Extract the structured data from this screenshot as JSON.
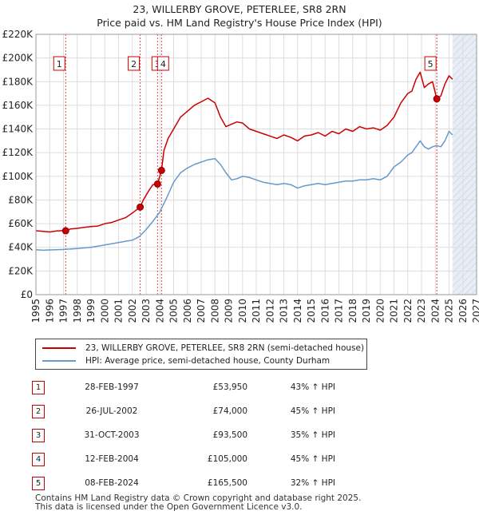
{
  "title": "23, WILLERBY GROVE, PETERLEE, SR8 2RN",
  "subtitle": "Price paid vs. HM Land Registry's House Price Index (HPI)",
  "colors": {
    "property": "#cc0000",
    "hpi": "#6699cc",
    "grid": "#dddddd",
    "marker_line": "#dd4444",
    "future_shade": "#e8eef6"
  },
  "chart_data": {
    "type": "line",
    "title": "23, WILLERBY GROVE, PETERLEE, SR8 2RN",
    "xlabel": "",
    "ylabel": "",
    "xlim": [
      1995,
      2027
    ],
    "ylim": [
      0,
      220000
    ],
    "grid": true,
    "y_ticks": [
      0,
      20000,
      40000,
      60000,
      80000,
      100000,
      120000,
      140000,
      160000,
      180000,
      200000,
      220000
    ],
    "y_tick_labels": [
      "£0",
      "£20K",
      "£40K",
      "£60K",
      "£80K",
      "£100K",
      "£120K",
      "£140K",
      "£160K",
      "£180K",
      "£200K",
      "£220K"
    ],
    "x_ticks": [
      "1995",
      "1996",
      "1997",
      "1998",
      "1999",
      "2000",
      "2001",
      "2002",
      "2003",
      "2004",
      "2005",
      "2006",
      "2007",
      "2008",
      "2009",
      "2010",
      "2011",
      "2012",
      "2013",
      "2014",
      "2015",
      "2016",
      "2017",
      "2018",
      "2019",
      "2020",
      "2021",
      "2022",
      "2023",
      "2024",
      "2025",
      "2026",
      "2027"
    ],
    "forecast_start": 2025.25,
    "series": [
      {
        "name": "23, WILLERBY GROVE, PETERLEE, SR8 2RN (semi-detached house)",
        "color": "#cc0000",
        "x": [
          1995.0,
          1995.5,
          1996.0,
          1996.5,
          1997.0,
          1997.16,
          1997.5,
          1998.0,
          1998.5,
          1999.0,
          1999.5,
          2000.0,
          2000.5,
          2001.0,
          2001.5,
          2002.0,
          2002.57,
          2002.8,
          2003.2,
          2003.5,
          2003.83,
          2004.12,
          2004.3,
          2004.6,
          2005.0,
          2005.5,
          2006.0,
          2006.5,
          2007.0,
          2007.5,
          2008.0,
          2008.4,
          2008.8,
          2009.2,
          2009.6,
          2010.0,
          2010.5,
          2011.0,
          2011.5,
          2012.0,
          2012.5,
          2013.0,
          2013.5,
          2014.0,
          2014.5,
          2015.0,
          2015.5,
          2016.0,
          2016.5,
          2017.0,
          2017.5,
          2018.0,
          2018.5,
          2019.0,
          2019.5,
          2020.0,
          2020.5,
          2021.0,
          2021.5,
          2022.0,
          2022.3,
          2022.6,
          2022.9,
          2023.2,
          2023.5,
          2023.8,
          2024.11,
          2024.4,
          2024.7,
          2025.0,
          2025.25
        ],
        "values": [
          54000,
          53500,
          53000,
          53800,
          54200,
          53950,
          55500,
          56000,
          56800,
          57500,
          58000,
          60000,
          61000,
          63000,
          65000,
          69000,
          74000,
          80000,
          88000,
          93000,
          93500,
          105000,
          122000,
          132000,
          140000,
          150000,
          155000,
          160000,
          163000,
          166000,
          162000,
          150000,
          142000,
          144000,
          146000,
          145000,
          140000,
          138000,
          136000,
          134000,
          132000,
          135000,
          133000,
          130000,
          134000,
          135000,
          137000,
          134000,
          138000,
          136000,
          140000,
          138000,
          142000,
          140000,
          141000,
          139000,
          143000,
          150000,
          162000,
          170000,
          172000,
          182000,
          188000,
          175000,
          178000,
          180000,
          165500,
          168000,
          178000,
          185000,
          182000
        ]
      },
      {
        "name": "HPI: Average price, semi-detached house, County Durham",
        "color": "#6699cc",
        "x": [
          1995.0,
          1995.5,
          1996.0,
          1996.5,
          1997.0,
          1997.5,
          1998.0,
          1998.5,
          1999.0,
          1999.5,
          2000.0,
          2000.5,
          2001.0,
          2001.5,
          2002.0,
          2002.5,
          2003.0,
          2003.5,
          2004.0,
          2004.5,
          2005.0,
          2005.5,
          2006.0,
          2006.5,
          2007.0,
          2007.5,
          2008.0,
          2008.4,
          2008.8,
          2009.2,
          2009.6,
          2010.0,
          2010.5,
          2011.0,
          2011.5,
          2012.0,
          2012.5,
          2013.0,
          2013.5,
          2014.0,
          2014.5,
          2015.0,
          2015.5,
          2016.0,
          2016.5,
          2017.0,
          2017.5,
          2018.0,
          2018.5,
          2019.0,
          2019.5,
          2020.0,
          2020.5,
          2021.0,
          2021.5,
          2022.0,
          2022.3,
          2022.6,
          2022.9,
          2023.2,
          2023.5,
          2023.8,
          2024.1,
          2024.4,
          2024.7,
          2025.0,
          2025.25
        ],
        "values": [
          38000,
          37500,
          37800,
          38000,
          38200,
          38500,
          39000,
          39500,
          40000,
          41000,
          42000,
          43000,
          44000,
          45000,
          46000,
          49000,
          55000,
          62000,
          70000,
          82000,
          95000,
          103000,
          107000,
          110000,
          112000,
          114000,
          115000,
          110000,
          103000,
          97000,
          98000,
          100000,
          99000,
          97000,
          95000,
          94000,
          93000,
          94000,
          93000,
          90000,
          92000,
          93000,
          94000,
          93000,
          94000,
          95000,
          96000,
          96000,
          97000,
          97000,
          98000,
          97000,
          100000,
          108000,
          112000,
          118000,
          120000,
          125000,
          130000,
          125000,
          123000,
          125000,
          126000,
          125000,
          130000,
          138000,
          135000
        ]
      }
    ],
    "sales": [
      {
        "id": "1",
        "date": "28-FEB-1997",
        "year": 1997.16,
        "price": 53950,
        "price_label": "£53,950",
        "hpi": "43% ↑ HPI"
      },
      {
        "id": "2",
        "date": "26-JUL-2002",
        "year": 2002.57,
        "price": 74000,
        "price_label": "£74,000",
        "hpi": "45% ↑ HPI"
      },
      {
        "id": "3",
        "date": "31-OCT-2003",
        "year": 2003.83,
        "price": 93500,
        "price_label": "£93,500",
        "hpi": "35% ↑ HPI"
      },
      {
        "id": "4",
        "date": "12-FEB-2004",
        "year": 2004.12,
        "price": 105000,
        "price_label": "£105,000",
        "hpi": "45% ↑ HPI"
      },
      {
        "id": "5",
        "date": "08-FEB-2024",
        "year": 2024.11,
        "price": 165500,
        "price_label": "£165,500",
        "hpi": "32% ↑ HPI"
      }
    ],
    "chart_labels": [
      "1",
      "2",
      "3",
      "4",
      "5"
    ]
  },
  "legend": {
    "property": "23, WILLERBY GROVE, PETERLEE, SR8 2RN (semi-detached house)",
    "hpi": "HPI: Average price, semi-detached house, County Durham"
  },
  "footer": {
    "line1": "Contains HM Land Registry data © Crown copyright and database right 2025.",
    "line2": "This data is licensed under the Open Government Licence v3.0."
  }
}
